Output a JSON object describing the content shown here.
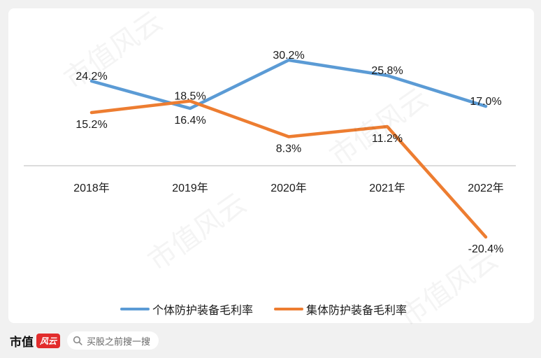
{
  "colors": {
    "series_1": "#5b9bd5",
    "series_2": "#ed7d31",
    "axis": "#c8c8c8"
  },
  "chart_data": {
    "type": "line",
    "categories": [
      "2018年",
      "2019年",
      "2020年",
      "2021年",
      "2022年"
    ],
    "series": [
      {
        "name": "个体防护装备毛利率",
        "values": [
          24.2,
          16.4,
          30.2,
          25.8,
          17.0
        ],
        "labels": [
          "24.2%",
          "16.4%",
          "30.2%",
          "25.8%",
          "17.0%"
        ]
      },
      {
        "name": "集体防护装备毛利率",
        "values": [
          15.2,
          18.5,
          8.3,
          11.2,
          -20.4
        ],
        "labels": [
          "15.2%",
          "18.5%",
          "8.3%",
          "11.2%",
          "-20.4%"
        ]
      }
    ],
    "title": "",
    "xlabel": "",
    "ylabel": "",
    "ylim": [
      -25,
      35
    ],
    "grid": false,
    "legend": "bottom"
  },
  "footer": {
    "brand": "市值",
    "brand_badge": "风云",
    "search_placeholder": "买股之前搜一搜",
    "search_icon": "search-icon"
  },
  "watermark": "市值风云"
}
